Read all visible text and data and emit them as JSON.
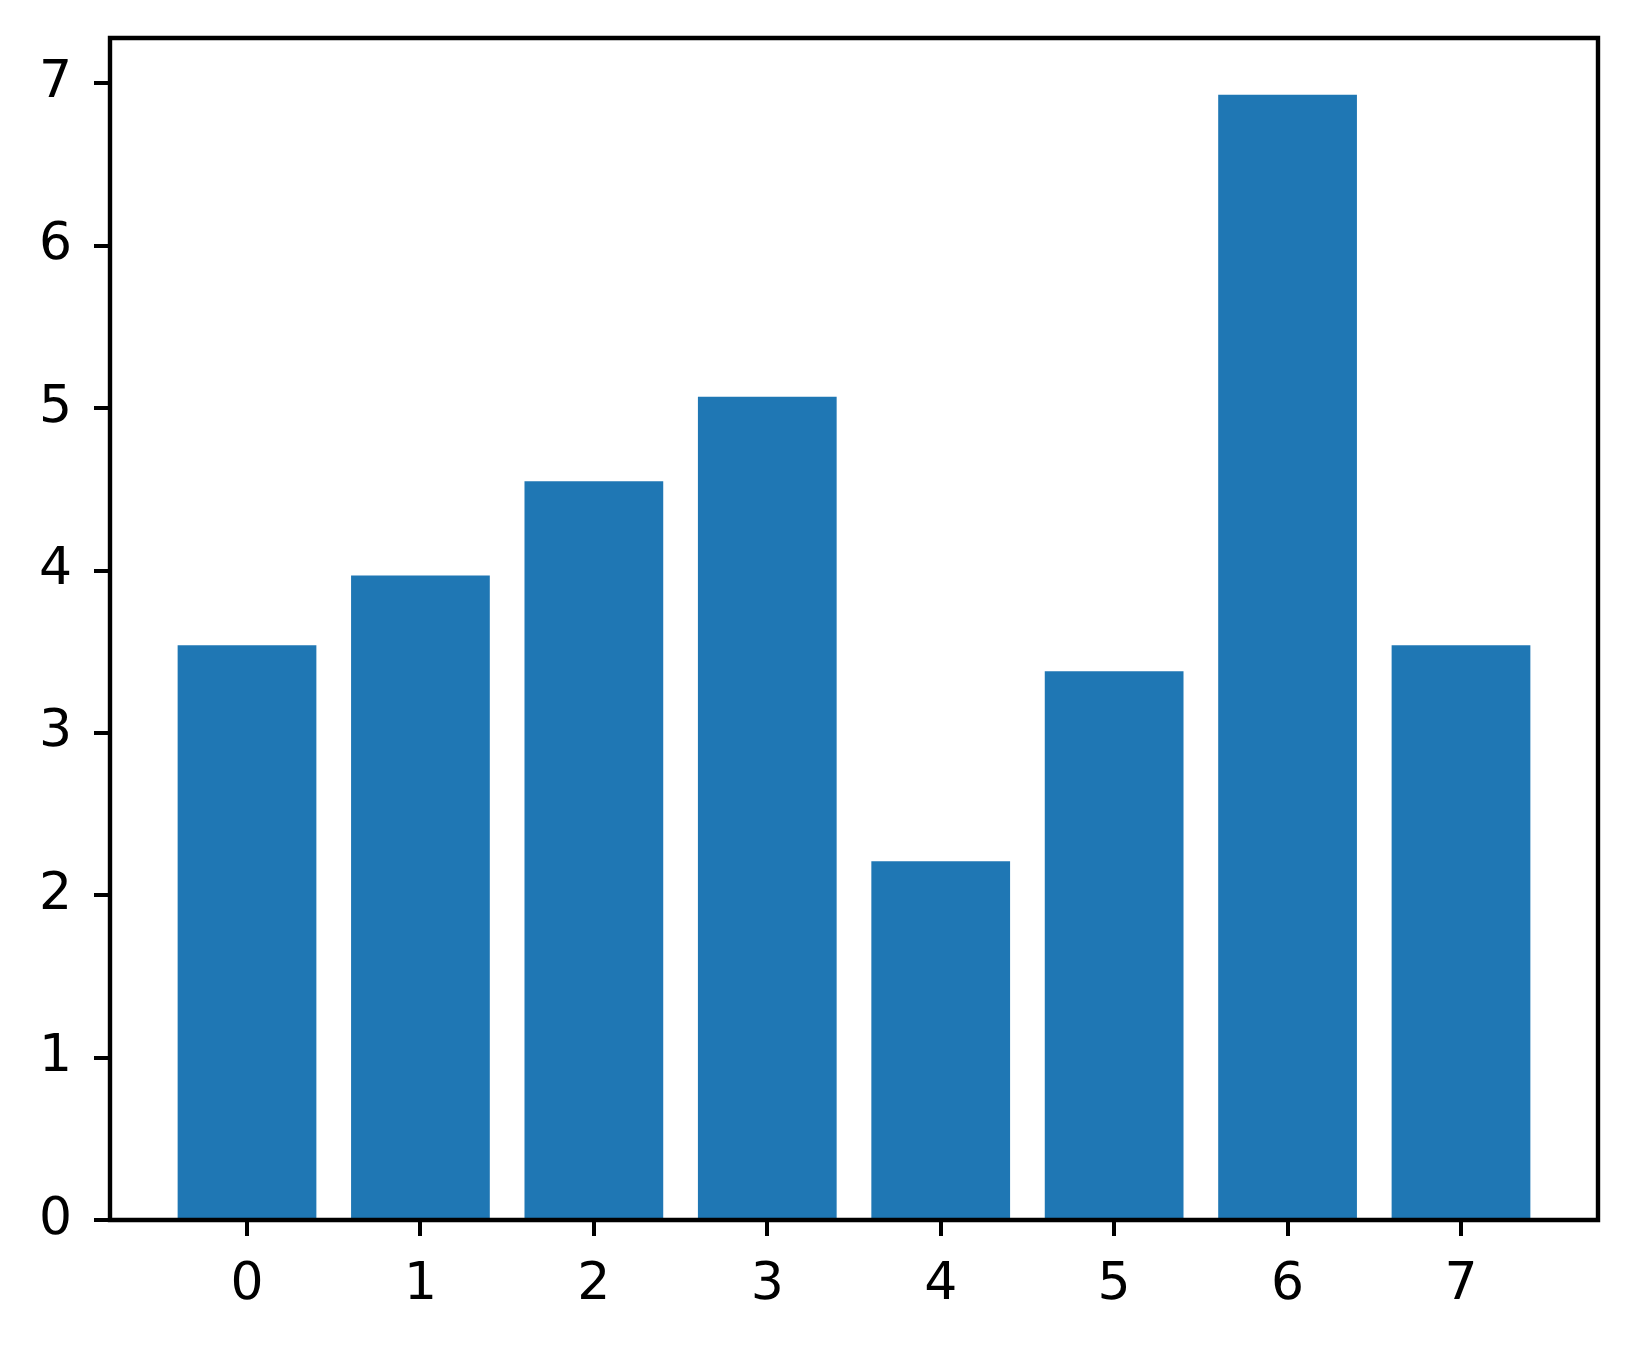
{
  "chart_data": {
    "type": "bar",
    "x": [
      0,
      1,
      2,
      3,
      4,
      5,
      6,
      7
    ],
    "values": [
      3.54,
      3.97,
      4.55,
      5.07,
      2.21,
      3.38,
      6.93,
      3.54
    ],
    "color": "#1f77b4",
    "xlim": [
      -0.79,
      7.79
    ],
    "xticks": [
      0,
      1,
      2,
      3,
      4,
      5,
      6,
      7
    ],
    "ylim": [
      0,
      7.28
    ],
    "yticks": [
      0,
      1,
      2,
      3,
      4,
      5,
      6,
      7
    ]
  }
}
